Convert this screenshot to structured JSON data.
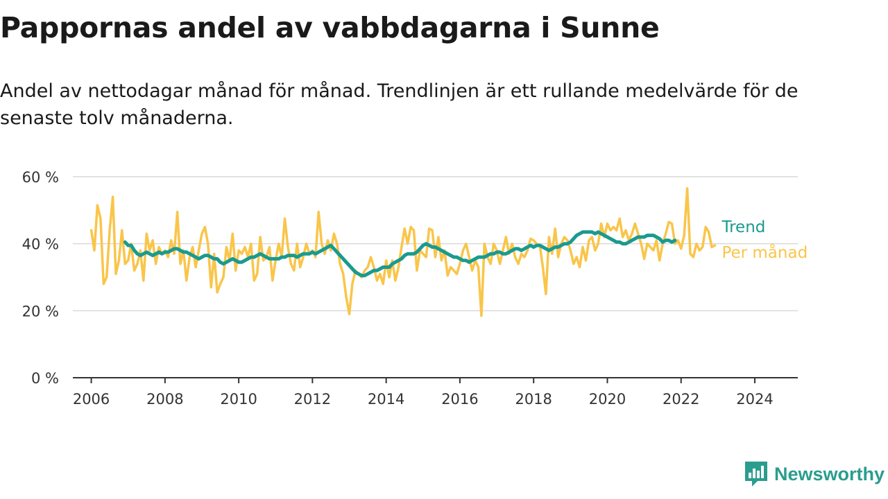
{
  "title": "Pappornas andel av vabbdagarna i Sunne",
  "subtitle": "Andel av nettodagar månad för månad. Trendlinjen är ett rullande medelvärde för de senaste tolv månaderna.",
  "brand": {
    "name": "Newsworthy",
    "icon": "newsworthy-bar-chart-icon",
    "color": "#2a9d8f"
  },
  "chart_data": {
    "type": "line",
    "title": "",
    "xlabel": "",
    "ylabel": "",
    "xlim": [
      "2005-07",
      "2025-03"
    ],
    "ylim": [
      0,
      60
    ],
    "x_ticks": [
      "2006",
      "2008",
      "2010",
      "2012",
      "2014",
      "2016",
      "2018",
      "2020",
      "2022",
      "2024"
    ],
    "y_ticks": [
      "0 %",
      "20 %",
      "40 %",
      "60 %"
    ],
    "y_tick_values": [
      0,
      20,
      40,
      60
    ],
    "x_tick_dates": [
      "2006-01",
      "2008-01",
      "2010-01",
      "2012-01",
      "2014-01",
      "2016-01",
      "2018-01",
      "2020-01",
      "2022-01",
      "2024-01"
    ],
    "grid": "horizontal",
    "legend": "right-end-labels",
    "series": [
      {
        "name": "Per månad",
        "color": "#f9c54a",
        "start": "2006-01",
        "values": [
          44,
          38,
          51.5,
          47.5,
          28,
          30,
          44,
          54,
          31,
          35,
          44,
          34,
          35,
          40,
          32,
          34,
          38,
          29,
          43,
          38,
          41,
          34,
          39,
          37,
          38,
          36,
          41,
          37,
          49.5,
          34,
          38,
          29,
          36,
          39,
          33,
          38,
          43,
          45,
          40,
          27,
          37,
          25.5,
          28,
          30,
          39,
          35,
          43,
          32,
          38,
          37,
          39,
          36,
          40,
          29,
          31,
          42,
          35,
          36,
          39,
          29,
          35,
          40,
          36,
          47.5,
          39,
          34,
          32,
          40,
          33,
          36,
          40,
          37,
          38,
          36,
          49.5,
          40,
          37,
          41,
          38,
          43,
          40,
          34,
          31,
          24,
          19,
          28,
          32,
          31,
          30,
          32,
          33,
          36,
          33,
          29,
          31,
          28,
          35,
          30,
          35,
          29,
          33,
          39,
          44.5,
          40,
          45,
          44,
          32,
          38,
          37,
          36,
          44.5,
          44,
          36,
          42,
          35,
          38,
          30.5,
          33,
          32,
          31,
          34,
          38,
          40,
          36,
          32,
          35,
          33,
          18.5,
          40,
          36,
          34,
          40,
          38,
          34,
          38,
          42,
          37,
          40,
          36,
          34,
          37,
          36,
          38,
          41.5,
          41,
          40,
          39.5,
          33,
          25,
          42,
          37,
          44.5,
          36,
          40,
          42,
          41,
          38,
          34,
          36,
          33,
          39,
          35,
          41,
          42,
          38,
          40,
          46,
          42,
          46,
          44,
          45,
          44,
          47.5,
          42,
          44,
          41,
          43,
          46,
          43,
          40,
          35.5,
          40,
          39,
          38,
          41,
          35,
          40,
          43,
          46.5,
          46,
          40,
          41,
          38.5,
          42.5,
          56.5,
          37,
          36,
          40,
          38,
          39,
          45,
          43.5,
          39,
          39.5
        ]
      },
      {
        "name": "Trend",
        "color": "#1a9a8f",
        "start": "2006-12",
        "values": [
          40.5,
          39.5,
          39.5,
          38,
          37,
          36.5,
          37,
          37.5,
          37,
          36.5,
          37,
          37.5,
          37,
          37.5,
          37.5,
          38,
          38.5,
          38.5,
          38,
          37.5,
          37.5,
          37,
          36.5,
          36,
          35.5,
          36,
          36.5,
          36.5,
          36,
          35.5,
          35.5,
          34.5,
          34,
          34.5,
          35,
          35.5,
          35,
          34.5,
          34.5,
          35,
          35.5,
          36,
          36,
          36.5,
          37,
          36.5,
          36,
          35.5,
          35.5,
          35.5,
          35.5,
          36,
          36,
          36.5,
          36.5,
          36.5,
          36,
          36.5,
          37,
          37,
          37,
          37.5,
          37,
          37.5,
          38,
          38.5,
          39,
          39.5,
          38.5,
          37.5,
          36.5,
          35.5,
          34.5,
          33.5,
          32.5,
          31.5,
          31,
          30.5,
          30.5,
          31,
          31.5,
          32,
          32,
          32.5,
          33,
          33,
          33,
          34,
          34.5,
          35,
          35.5,
          36.5,
          37,
          37,
          37,
          37.5,
          38.5,
          39.5,
          40,
          39.5,
          39,
          39,
          38.5,
          38,
          37.5,
          37,
          36.5,
          36,
          36,
          35.5,
          35,
          35,
          34.5,
          35,
          35.5,
          36,
          36,
          36,
          36.5,
          37,
          37,
          37.5,
          37.5,
          37,
          37,
          37.5,
          38,
          38.5,
          38.5,
          38,
          38.5,
          39,
          39.5,
          39,
          39.5,
          39.5,
          39,
          38.5,
          38,
          38.5,
          39,
          39,
          39.5,
          40,
          40,
          40.5,
          41.5,
          42.5,
          43,
          43.5,
          43.5,
          43.5,
          43.5,
          43,
          43.5,
          43,
          42.5,
          42,
          41.5,
          41,
          40.5,
          40.5,
          40,
          40,
          40.5,
          41,
          41.5,
          42,
          42,
          42,
          42.5,
          42.5,
          42.5,
          42,
          41.5,
          40.5,
          41,
          41,
          40.5,
          41
        ]
      }
    ]
  }
}
